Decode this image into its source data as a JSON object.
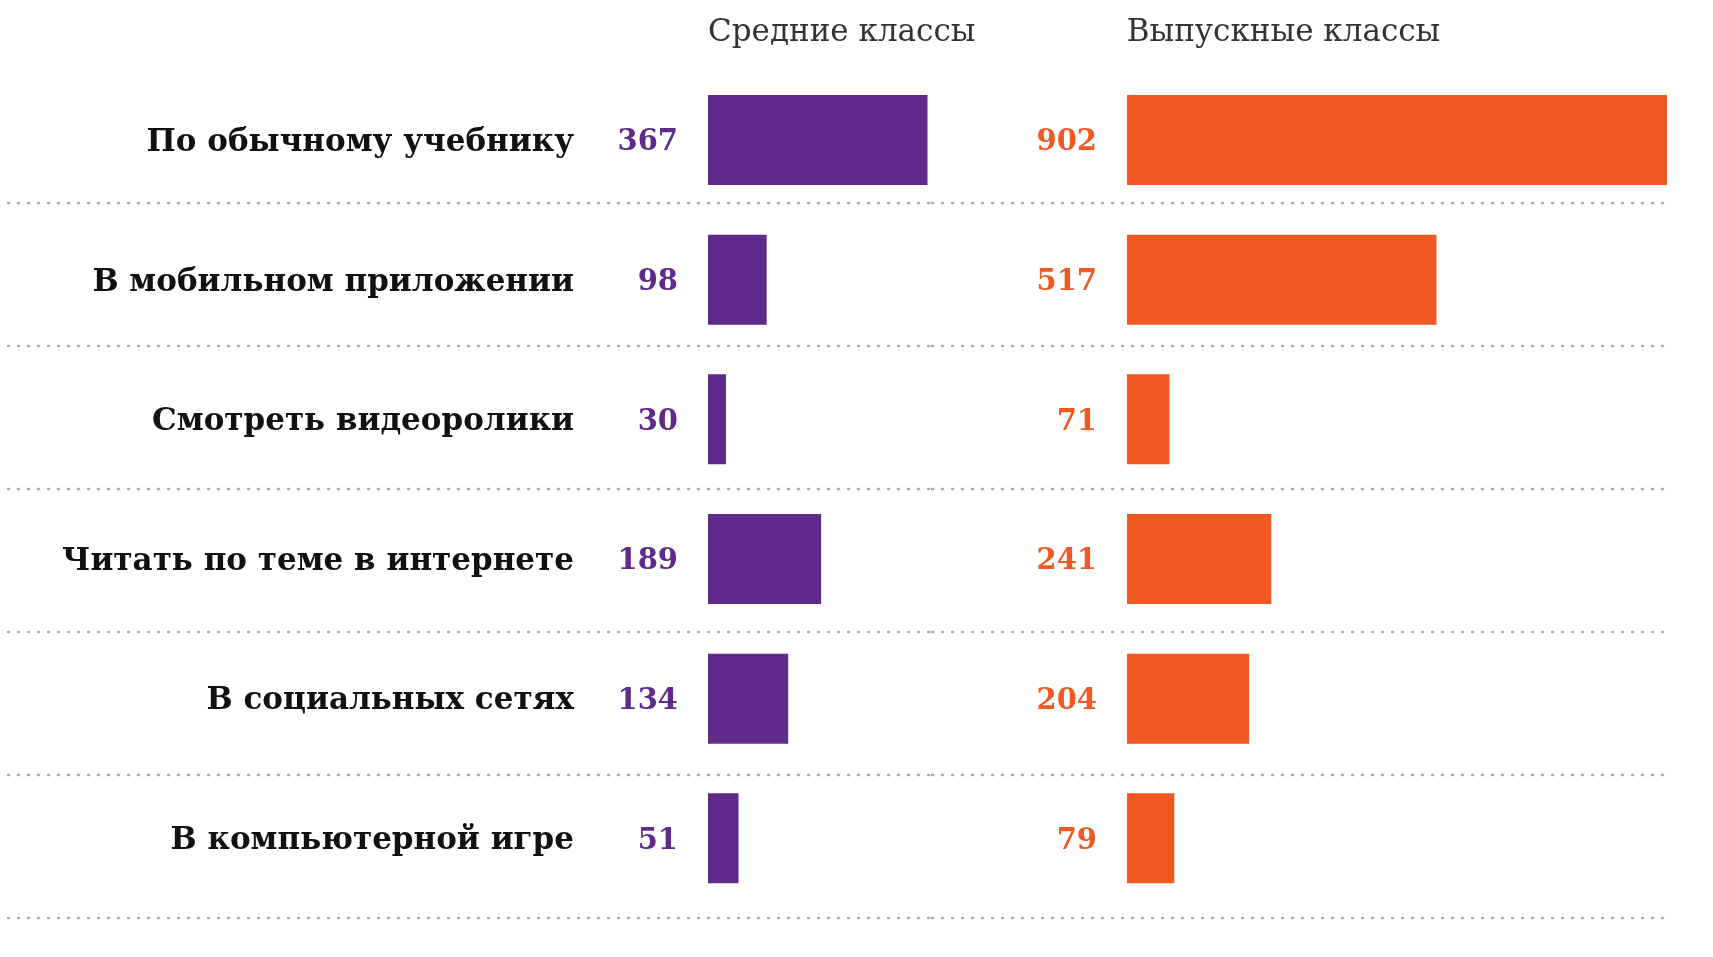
{
  "chart_data": [
    {
      "type": "bar",
      "orientation": "horizontal",
      "title": "Средние классы",
      "categories": [
        "По обычному учебнику",
        "В мобильном приложении",
        "Смотреть видеоролики",
        "Читать по теме в интернете",
        "В социальных сетях",
        "В компьютерной игре"
      ],
      "values": [
        367,
        98,
        30,
        189,
        134,
        51
      ],
      "color": "#5f2a8a",
      "data_labels": true,
      "grid": "y",
      "tick_labels": "y"
    },
    {
      "type": "bar",
      "orientation": "horizontal",
      "title": "Выпускные классы",
      "categories": [
        null,
        null,
        null,
        null,
        null,
        null
      ],
      "values": [
        902,
        517,
        71,
        241,
        204,
        79
      ],
      "color": "#f05a22",
      "data_labels": true,
      "grid": "y",
      "tick_labels": false
    }
  ]
}
